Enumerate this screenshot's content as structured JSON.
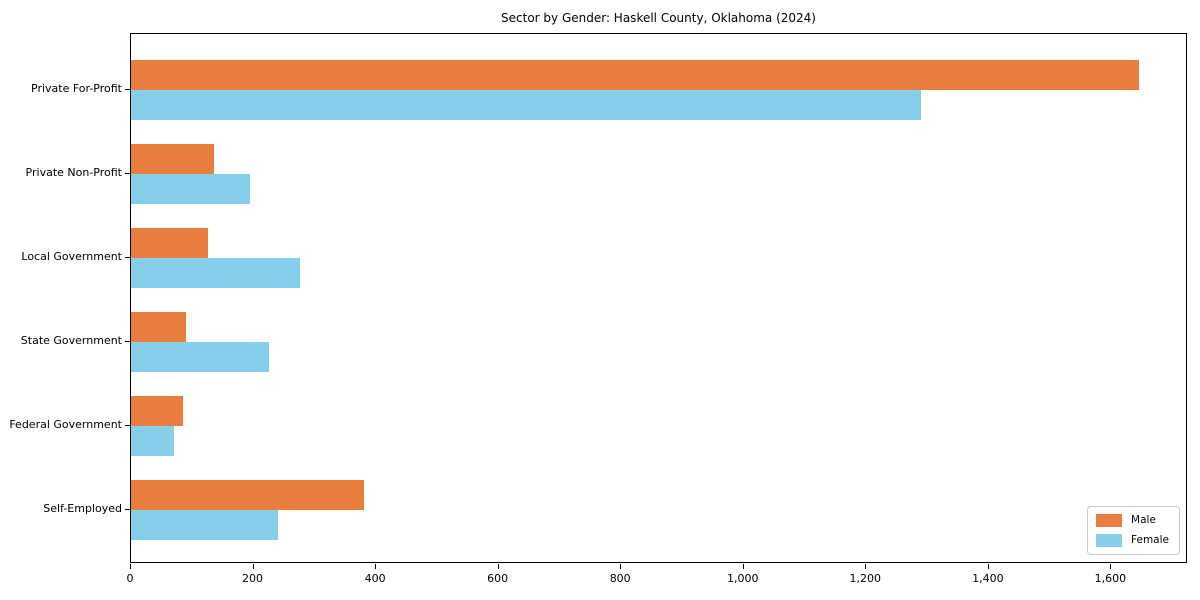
{
  "title": "Sector by Gender: Haskell County, Oklahoma (2024)",
  "chart_data": {
    "type": "bar",
    "orientation": "horizontal",
    "title": "Sector by Gender: Haskell County, Oklahoma (2024)",
    "categories": [
      "Private For-Profit",
      "Private Non-Profit",
      "Local Government",
      "State Government",
      "Federal Government",
      "Self-Employed"
    ],
    "series": [
      {
        "name": "Male",
        "color": "#e87d3e",
        "values": [
          1645,
          135,
          125,
          90,
          85,
          380
        ]
      },
      {
        "name": "Female",
        "color": "#87ceeb",
        "values": [
          1290,
          195,
          275,
          225,
          70,
          240
        ]
      }
    ],
    "xlabel": "",
    "ylabel": "",
    "xlim": [
      0,
      1725
    ],
    "xtick_values": [
      0,
      200,
      400,
      600,
      800,
      1000,
      1200,
      1400,
      1600
    ],
    "xtick_labels": [
      "0",
      "200",
      "400",
      "600",
      "800",
      "1,000",
      "1,200",
      "1,400",
      "1,600"
    ],
    "grid": false,
    "legend_position": "lower right",
    "bar_edge_color": "none"
  }
}
